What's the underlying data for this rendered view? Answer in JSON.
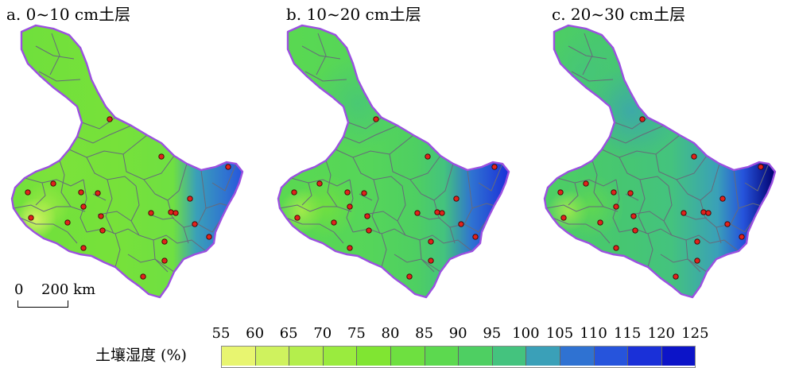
{
  "panels": [
    {
      "title": "a. 0~10 cm土层"
    },
    {
      "title": "b. 10~20 cm土层"
    },
    {
      "title": "c. 20~30 cm土层"
    }
  ],
  "scale_bar": {
    "zero": "0",
    "distance": "200 km"
  },
  "legend": {
    "title": "土壤湿度 (%)",
    "ticks": [
      "55",
      "60",
      "65",
      "70",
      "75",
      "80",
      "85",
      "90",
      "95",
      "100",
      "105",
      "110",
      "115",
      "120",
      "125"
    ],
    "colors": [
      "#e8f570",
      "#cff25e",
      "#b4ee4c",
      "#9aeb3e",
      "#80e532",
      "#6ee040",
      "#5cd94f",
      "#4ecf62",
      "#44c37e",
      "#3aa0b8",
      "#2f72d2",
      "#2654dc",
      "#1a30d8",
      "#0c14c8",
      "#00006e"
    ]
  },
  "colors": {
    "boundary": "#9b4fe0",
    "district_lines": "#666a7a",
    "station_fill": "#e0231c"
  }
}
